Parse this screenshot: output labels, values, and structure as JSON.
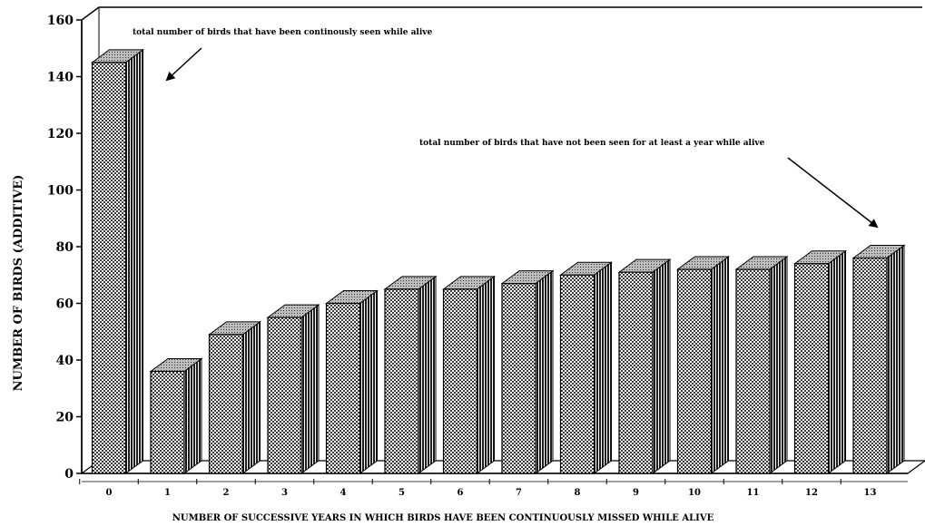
{
  "chart_data": {
    "type": "bar",
    "title": "",
    "xlabel": "NUMBER OF SUCCESSIVE YEARS IN WHICH BIRDS HAVE BEEN CONTINUOUSLY MISSED WHILE ALIVE",
    "ylabel": "NUMBER OF BIRDS (ADDITIVE)",
    "ylim": [
      0,
      160
    ],
    "yticks": [
      0,
      20,
      40,
      60,
      80,
      100,
      120,
      140,
      160
    ],
    "categories": [
      "0",
      "1",
      "2",
      "3",
      "4",
      "5",
      "6",
      "7",
      "8",
      "9",
      "10",
      "11",
      "12",
      "13"
    ],
    "values": [
      145,
      36,
      49,
      55,
      60,
      65,
      65,
      67,
      70,
      71,
      72,
      72,
      74,
      76
    ],
    "bar_style": "3d-hatched",
    "grid": false,
    "annotations": [
      {
        "text": "total number of birds that have been continously seen while  alive",
        "points_to": "0"
      },
      {
        "text": "total number of birds that have not been seen for at least  a year while alive",
        "points_to": "13"
      }
    ]
  }
}
